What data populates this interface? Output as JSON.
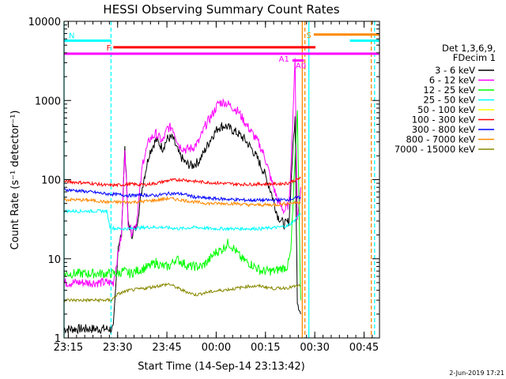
{
  "chart_data": {
    "type": "line",
    "title": "HESSI Observing Summary Count Rates",
    "xlabel": "Start Time (14-Sep-14 23:13:42)",
    "ylabel": "Count Rate (s⁻¹ detector⁻¹)",
    "x_unit": "minutes after 14-Sep-14 23:13:42",
    "xlim": [
      0,
      96
    ],
    "ylim": [
      1,
      10000
    ],
    "yscale": "log",
    "x_ticks": [
      {
        "label": "23:15",
        "value": 1.3
      },
      {
        "label": "23:30",
        "value": 16.3
      },
      {
        "label": "23:45",
        "value": 31.3
      },
      {
        "label": "00:00",
        "value": 46.3
      },
      {
        "label": "00:15",
        "value": 61.3
      },
      {
        "label": "00:30",
        "value": 76.3
      },
      {
        "label": "00:45",
        "value": 91.3
      }
    ],
    "y_ticks": [
      {
        "label": "1",
        "value": 1
      },
      {
        "label": "10",
        "value": 10
      },
      {
        "label": "100",
        "value": 100
      },
      {
        "label": "1000",
        "value": 1000
      },
      {
        "label": "10000",
        "value": 10000
      }
    ],
    "legend": {
      "placement": "right",
      "header": [
        "Det 1,3,6,9,",
        "FDecim 1"
      ],
      "entries": [
        {
          "label": "3 - 6 keV",
          "color": "#000000"
        },
        {
          "label": "6 - 12 keV",
          "color": "#ff00ff"
        },
        {
          "label": "12 - 25 keV",
          "color": "#00ff00"
        },
        {
          "label": "25 - 50 keV",
          "color": "#00ffff"
        },
        {
          "label": "50 - 100 keV",
          "color": "#ffff00"
        },
        {
          "label": "100 - 300 keV",
          "color": "#ff0000"
        },
        {
          "label": "300 - 800 keV",
          "color": "#0000ff"
        },
        {
          "label": "800 - 7000 keV",
          "color": "#ff8800"
        },
        {
          "label": "7000 - 15000 keV",
          "color": "#888800"
        }
      ]
    },
    "series": [
      {
        "color": "#000000",
        "x": [
          0,
          13,
          15,
          16.5,
          17.5,
          18.5,
          19.5,
          20.5,
          22,
          24,
          26,
          28,
          30,
          31.5,
          33,
          35,
          37,
          39,
          41,
          43,
          45,
          47,
          49,
          51,
          53,
          55,
          57,
          59,
          61,
          63,
          65,
          67,
          68.5,
          69.5,
          70.3,
          71,
          72
        ],
        "y": [
          1.3,
          1.3,
          1.3,
          15,
          20,
          270,
          30,
          20,
          25,
          90,
          220,
          320,
          250,
          330,
          340,
          210,
          160,
          150,
          170,
          240,
          350,
          460,
          480,
          430,
          380,
          320,
          250,
          180,
          120,
          70,
          35,
          27,
          30,
          200,
          600,
          3,
          2
        ]
      },
      {
        "color": "#ff00ff",
        "x": [
          0,
          13,
          15,
          16.5,
          17.5,
          18.5,
          19.5,
          20.5,
          22,
          24,
          26,
          28,
          30,
          31.5,
          33,
          35,
          37,
          39,
          41,
          43,
          45,
          47,
          49,
          51,
          53,
          55,
          57,
          59,
          61,
          63,
          65,
          67,
          68.5,
          69.5,
          70.3,
          71,
          72
        ],
        "y": [
          5,
          5,
          5,
          12,
          20,
          260,
          30,
          22,
          28,
          170,
          320,
          380,
          300,
          450,
          460,
          270,
          240,
          250,
          300,
          480,
          650,
          930,
          950,
          840,
          730,
          530,
          400,
          300,
          200,
          100,
          55,
          40,
          50,
          450,
          3200,
          30,
          80
        ]
      },
      {
        "color": "#00ff00",
        "x": [
          0,
          13,
          15,
          16.5,
          18,
          20,
          22,
          24,
          26,
          28,
          30,
          32,
          34,
          36,
          38,
          40,
          42,
          44,
          46,
          48,
          50,
          52,
          54,
          56,
          58,
          60,
          62,
          64,
          66,
          68,
          69,
          70,
          71,
          72
        ],
        "y": [
          6.5,
          6.5,
          6.5,
          6.5,
          7,
          6.5,
          7,
          7.5,
          8,
          9,
          8,
          8,
          10,
          9,
          8,
          8,
          8,
          9.5,
          12,
          13,
          16,
          13,
          10,
          9,
          8,
          7,
          7,
          7,
          7.5,
          8,
          12,
          90,
          800,
          3
        ]
      },
      {
        "color": "#00ffff",
        "x": [
          0,
          13,
          14,
          16,
          20,
          25,
          30,
          35,
          40,
          45,
          50,
          55,
          60,
          65,
          68,
          70,
          72
        ],
        "y": [
          40,
          40,
          25,
          24,
          24,
          25,
          25,
          24,
          25,
          24,
          24,
          24,
          24,
          25,
          26,
          30,
          38
        ]
      },
      {
        "color": "#ff0000",
        "x": [
          0,
          8,
          13,
          16,
          20,
          24,
          28,
          32,
          36,
          40,
          44,
          48,
          52,
          56,
          60,
          64,
          68,
          72
        ],
        "y": [
          95,
          90,
          85,
          85,
          88,
          86,
          90,
          98,
          100,
          95,
          92,
          90,
          88,
          87,
          88,
          88,
          90,
          105
        ]
      },
      {
        "color": "#0000ff",
        "x": [
          0,
          8,
          13,
          16,
          20,
          24,
          28,
          32,
          36,
          40,
          44,
          48,
          52,
          56,
          60,
          64,
          68,
          72
        ],
        "y": [
          75,
          70,
          66,
          65,
          63,
          64,
          63,
          67,
          66,
          60,
          58,
          57,
          56,
          55,
          55,
          55,
          56,
          60
        ]
      },
      {
        "color": "#ff8800",
        "x": [
          0,
          8,
          13,
          16,
          20,
          24,
          28,
          32,
          36,
          40,
          44,
          48,
          52,
          56,
          60,
          64,
          68,
          72
        ],
        "y": [
          56,
          55,
          52,
          52,
          52,
          53,
          55,
          58,
          55,
          52,
          50,
          50,
          50,
          48,
          48,
          48,
          50,
          52
        ]
      },
      {
        "color": "#888800",
        "x": [
          0,
          13,
          14.5,
          16,
          18,
          20,
          24,
          28,
          32,
          36,
          40,
          44,
          48,
          52,
          56,
          60,
          64,
          68,
          72
        ],
        "y": [
          3,
          3,
          3,
          3.5,
          3.8,
          4,
          4.2,
          4.5,
          4.8,
          4,
          3.5,
          3.8,
          4,
          4.2,
          4.5,
          4.5,
          4.2,
          4.3,
          4.6
        ]
      }
    ],
    "flags": [
      {
        "label": "N",
        "color": "#00ffff",
        "segments": [
          [
            0,
            14.3
          ],
          [
            87,
            96
          ]
        ],
        "y": 5700
      },
      {
        "label": "F",
        "color": "#ff0000",
        "segments": [
          [
            15,
            76.5
          ]
        ],
        "y": 4700
      },
      {
        "label": "S",
        "color": "#ff8800",
        "segments": [
          [
            76,
            96
          ]
        ],
        "y": 6800
      },
      {
        "label": "A1",
        "color": "#ff00ff",
        "segments": [
          [
            0,
            96
          ]
        ],
        "y": 3900
      },
      {
        "label": "A0",
        "color": "#ff00ff",
        "segments": [
          [
            69.5,
            73
          ]
        ],
        "y": 3200
      }
    ],
    "vlines": [
      {
        "x": 0,
        "color": "#00ffff",
        "style": "solid"
      },
      {
        "x": 14.3,
        "color": "#00ffff",
        "style": "dashed"
      },
      {
        "x": 72.5,
        "color": "#ff8800",
        "style": "solid"
      },
      {
        "x": 73.3,
        "color": "#ff8800",
        "style": "dashed"
      },
      {
        "x": 74.5,
        "color": "#00ffff",
        "style": "solid"
      },
      {
        "x": 93.5,
        "color": "#ff8800",
        "style": "dashed"
      },
      {
        "x": 94.5,
        "color": "#00ffff",
        "style": "dashed"
      }
    ]
  },
  "footer": {
    "timestamp": "2-Jun-2019 17:21"
  }
}
